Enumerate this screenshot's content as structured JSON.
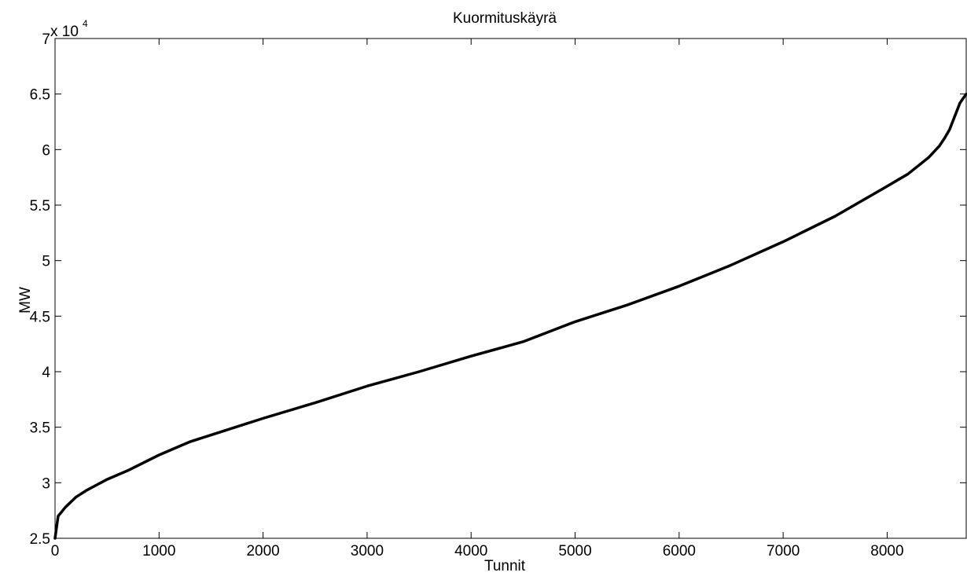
{
  "chart_data": {
    "type": "line",
    "title": "Kuormituskäyrä",
    "xlabel": "Tunnit",
    "ylabel": "MW",
    "y_multiplier_label": "x 10",
    "y_multiplier_exponent": "4",
    "xlim": [
      0,
      8760
    ],
    "ylim": [
      25000,
      70000
    ],
    "grid": false,
    "x_ticks": [
      0,
      1000,
      2000,
      3000,
      4000,
      5000,
      6000,
      7000,
      8000
    ],
    "x_tick_labels": [
      "0",
      "1000",
      "2000",
      "3000",
      "4000",
      "5000",
      "6000",
      "7000",
      "8000"
    ],
    "y_ticks": [
      25000,
      30000,
      35000,
      40000,
      45000,
      50000,
      55000,
      60000,
      65000,
      70000
    ],
    "y_tick_labels": [
      "2.5",
      "3",
      "3.5",
      "4",
      "4.5",
      "5",
      "5.5",
      "6",
      "6.5",
      "7"
    ],
    "series": [
      {
        "color": "#000000",
        "x": [
          0,
          30,
          100,
          200,
          300,
          500,
          700,
          1000,
          1300,
          1500,
          2000,
          2500,
          3000,
          3500,
          4000,
          4500,
          5000,
          5500,
          6000,
          6500,
          7000,
          7500,
          8000,
          8200,
          8400,
          8500,
          8550,
          8600,
          8650,
          8700,
          8760
        ],
        "y": [
          25000,
          27000,
          27800,
          28700,
          29300,
          30300,
          31100,
          32500,
          33700,
          34300,
          35800,
          37200,
          38700,
          40000,
          41400,
          42700,
          44500,
          46000,
          47700,
          49600,
          51700,
          54000,
          56700,
          57800,
          59300,
          60300,
          61000,
          61800,
          63000,
          64200,
          65000
        ]
      }
    ]
  }
}
